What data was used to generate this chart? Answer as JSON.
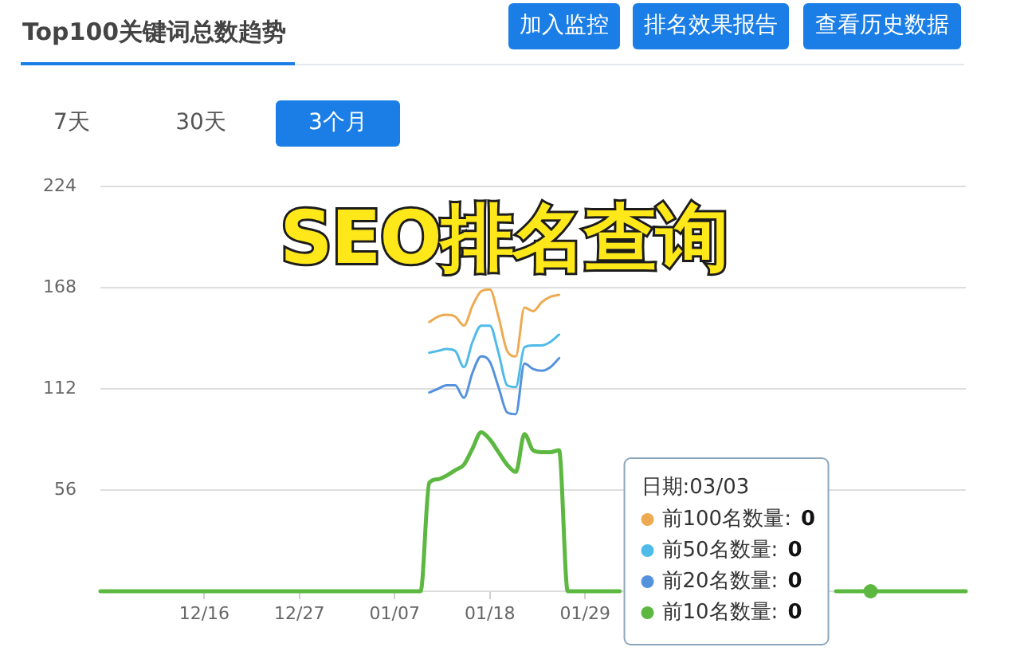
{
  "chart_data": {
    "type": "line",
    "title": "Top100关键词总数趋势",
    "annotations": [
      "加入监控",
      "排名效果报告",
      "查看历史数据",
      "7天",
      "30天",
      "3个月",
      "SEO排名查询",
      "0",
      "0",
      "0",
      "0"
    ],
    "legend_title": "日期:03/03",
    "categories": [
      null,
      null,
      null,
      null,
      null,
      null,
      null,
      null,
      null,
      null,
      null,
      null,
      "12/16",
      null,
      null,
      null,
      null,
      null,
      null,
      null,
      null,
      null,
      null,
      "12/27",
      null,
      null,
      null,
      null,
      null,
      null,
      null,
      null,
      null,
      null,
      "01/07",
      null,
      null,
      null,
      null,
      null,
      null,
      null,
      null,
      null,
      null,
      "01/18",
      null,
      null,
      null,
      null,
      null,
      null,
      null,
      null,
      null,
      null,
      "01/29",
      null,
      null,
      null,
      null,
      null,
      null,
      null,
      null,
      null,
      null,
      null,
      null,
      null,
      null,
      null,
      null,
      null,
      null,
      null,
      null,
      null,
      null,
      null,
      null,
      null,
      null,
      null,
      null,
      null,
      null,
      null,
      null,
      null,
      null,
      null,
      null,
      null,
      null,
      null,
      null,
      null,
      null,
      null,
      null
    ],
    "series": [
      {
        "name": "前100名数量:",
        "color": "#eeaa50",
        "values": [
          null,
          null,
          null,
          null,
          null,
          null,
          null,
          null,
          null,
          null,
          null,
          null,
          null,
          null,
          null,
          null,
          null,
          null,
          null,
          null,
          null,
          null,
          null,
          null,
          null,
          null,
          null,
          null,
          null,
          null,
          null,
          null,
          null,
          null,
          null,
          null,
          null,
          null,
          149,
          152,
          153,
          152,
          147,
          158,
          166,
          167,
          152,
          133,
          130,
          157,
          155,
          160,
          163,
          164,
          null,
          null,
          null,
          null,
          null,
          null,
          null,
          null,
          null,
          null,
          null,
          null,
          null,
          null,
          null,
          null,
          null,
          null,
          null,
          null,
          null,
          null,
          null,
          null,
          null,
          null,
          null,
          null,
          null,
          null,
          null,
          null,
          null,
          null,
          null,
          null,
          null,
          null,
          null,
          null,
          null,
          null,
          null,
          null,
          null,
          null,
          null
        ]
      },
      {
        "name": "前50名数量:",
        "color": "#4fbbe8",
        "values": [
          null,
          null,
          null,
          null,
          null,
          null,
          null,
          null,
          null,
          null,
          null,
          null,
          null,
          null,
          null,
          null,
          null,
          null,
          null,
          null,
          null,
          null,
          null,
          null,
          null,
          null,
          null,
          null,
          null,
          null,
          null,
          null,
          null,
          null,
          null,
          null,
          null,
          null,
          132,
          133,
          134,
          133,
          124,
          138,
          147,
          147,
          132,
          114,
          113,
          135,
          136,
          136,
          138,
          142,
          null,
          null,
          null,
          null,
          null,
          null,
          null,
          null,
          null,
          null,
          null,
          null,
          null,
          null,
          null,
          null,
          null,
          null,
          null,
          null,
          null,
          null,
          null,
          null,
          null,
          null,
          null,
          null,
          null,
          null,
          null,
          null,
          null,
          null,
          null,
          null,
          null,
          null,
          null,
          null,
          null,
          null,
          null,
          null,
          null,
          null,
          null
        ]
      },
      {
        "name": "前20名数量:",
        "color": "#5592dc",
        "values": [
          null,
          null,
          null,
          null,
          null,
          null,
          null,
          null,
          null,
          null,
          null,
          null,
          null,
          null,
          null,
          null,
          null,
          null,
          null,
          null,
          null,
          null,
          null,
          null,
          null,
          null,
          null,
          null,
          null,
          null,
          null,
          null,
          null,
          null,
          null,
          null,
          null,
          null,
          110,
          112,
          114,
          114,
          107,
          121,
          130,
          127,
          113,
          99,
          98,
          126,
          123,
          122,
          124,
          129,
          null,
          null,
          null,
          null,
          null,
          null,
          null,
          null,
          null,
          null,
          null,
          null,
          null,
          null,
          null,
          null,
          null,
          null,
          null,
          null,
          null,
          null,
          null,
          null,
          null,
          null,
          null,
          null,
          null,
          null,
          null,
          null,
          null,
          null,
          null,
          null,
          null,
          null,
          null,
          null,
          null,
          null,
          null,
          null,
          null,
          null,
          null
        ]
      },
      {
        "name": "前10名数量:",
        "color": "#5cb840",
        "values": [
          0,
          0,
          0,
          0,
          0,
          0,
          0,
          0,
          0,
          0,
          0,
          0,
          0,
          0,
          0,
          0,
          0,
          0,
          0,
          0,
          0,
          0,
          0,
          0,
          0,
          0,
          0,
          0,
          0,
          0,
          0,
          0,
          0,
          0,
          0,
          0,
          0,
          0,
          60,
          62,
          64,
          67,
          70,
          79,
          88,
          84,
          77,
          70,
          66,
          87,
          78,
          77,
          77,
          78,
          0,
          0,
          0,
          0,
          0,
          0,
          0,
          null,
          null,
          null,
          null,
          null,
          null,
          null,
          null,
          null,
          null,
          null,
          null,
          null,
          null,
          null,
          null,
          null,
          null,
          null,
          null,
          null,
          null,
          null,
          null,
          0,
          0,
          0,
          0,
          0,
          0,
          0,
          0,
          0,
          0,
          0,
          0,
          0,
          0,
          0,
          0
        ]
      },
      {
        "type": "scatter",
        "marker": "circle",
        "color": "#5cb840",
        "values": [
          null,
          null,
          null,
          null,
          null,
          null,
          null,
          null,
          null,
          null,
          null,
          null,
          null,
          null,
          null,
          null,
          null,
          null,
          null,
          null,
          null,
          null,
          null,
          null,
          null,
          null,
          null,
          null,
          null,
          null,
          null,
          null,
          null,
          null,
          null,
          null,
          null,
          null,
          null,
          null,
          null,
          null,
          null,
          null,
          null,
          null,
          null,
          null,
          null,
          null,
          null,
          null,
          null,
          null,
          null,
          null,
          null,
          null,
          null,
          null,
          null,
          null,
          null,
          null,
          null,
          null,
          null,
          null,
          null,
          null,
          null,
          null,
          null,
          null,
          null,
          null,
          null,
          null,
          null,
          null,
          null,
          null,
          null,
          null,
          null,
          null,
          null,
          null,
          null,
          0,
          null,
          null,
          null,
          null,
          null,
          null,
          null,
          null,
          null,
          null,
          null
        ]
      }
    ],
    "ylim": [
      0,
      224
    ],
    "yticks": [
      {
        "value": 0,
        "label": null
      },
      56,
      112,
      168,
      224
    ],
    "grid": "y",
    "legend": "bottom right",
    "marker": "none"
  }
}
